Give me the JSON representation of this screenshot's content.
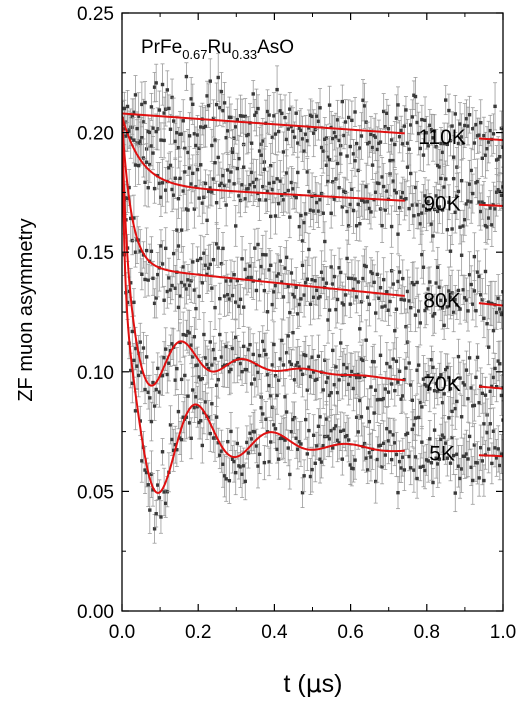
{
  "chart_data": {
    "type": "scatter",
    "title": {
      "parts": [
        {
          "text": "PrFe",
          "sub": false
        },
        {
          "text": "0.67",
          "sub": true
        },
        {
          "text": "Ru",
          "sub": false
        },
        {
          "text": "0.33",
          "sub": true
        },
        {
          "text": "AsO",
          "sub": false
        }
      ]
    },
    "xlabel": {
      "prefix": "t (",
      "symbol": "μ",
      "suffix": "s)"
    },
    "ylabel": "ZF muon asymmetry",
    "xlim": [
      0.0,
      1.0
    ],
    "ylim": [
      0.0,
      0.25
    ],
    "xticks": [
      "0.0",
      "0.2",
      "0.4",
      "0.6",
      "0.8",
      "1.0"
    ],
    "yticks": [
      "0.00",
      "0.05",
      "0.10",
      "0.15",
      "0.20",
      "0.25"
    ],
    "marker_color": "#3a3a3a",
    "errorbar_color": "#9a9a9a",
    "fit_color": "#e01010",
    "series": [
      {
        "name": "110K",
        "a0": 0.208,
        "a_fast": 0.0,
        "a_osc": 0.0,
        "a_slow": 0.208,
        "lam_fast": 0,
        "lam_slow": 0.055,
        "osc_freq": 0,
        "osc_damp": 0,
        "noise": 0.0075,
        "seed": 11
      },
      {
        "name": "90K",
        "a0": 0.207,
        "a_fast": 0.029,
        "a_osc": 0.0,
        "a_slow": 0.178,
        "lam_fast": 20,
        "lam_slow": 0.05,
        "osc_freq": 0,
        "osc_damp": 0,
        "noise": 0.0075,
        "seed": 23
      },
      {
        "name": "80K",
        "a0": 0.205,
        "a_fast": 0.061,
        "a_osc": 0.0,
        "a_slow": 0.144,
        "lam_fast": 40,
        "lam_slow": 0.12,
        "osc_freq": 0,
        "osc_damp": 0,
        "noise": 0.0075,
        "seed": 37
      },
      {
        "name": "70K",
        "a0": 0.204,
        "a_fast": 0.074,
        "a_osc": 0.022,
        "a_slow": 0.108,
        "lam_fast": 80,
        "lam_slow": 0.15,
        "osc_freq": 6.2,
        "osc_damp": 7,
        "noise": 0.0075,
        "seed": 53
      },
      {
        "name": "5K",
        "a0": 0.204,
        "a_fast": 0.085,
        "a_osc": 0.044,
        "a_slow": 0.075,
        "lam_fast": 140,
        "lam_slow": 0.15,
        "osc_freq": 5.0,
        "osc_damp": 6,
        "noise": 0.0075,
        "seed": 71
      }
    ]
  }
}
